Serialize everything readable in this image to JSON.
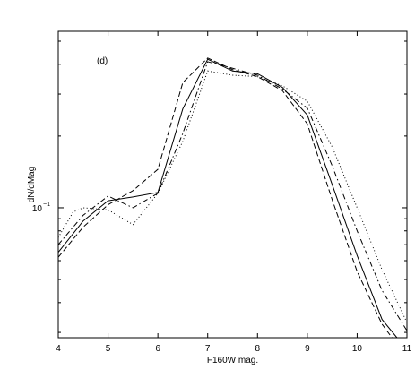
{
  "chart_data": {
    "type": "line",
    "panel_label": "(d)",
    "xlabel": "F160W mag.",
    "ylabel": "dN/dMag",
    "xlim": [
      4,
      11
    ],
    "ylim": [
      0.0285,
      0.55
    ],
    "yscale": "log",
    "x_ticks": [
      4,
      5,
      6,
      7,
      8,
      9,
      10,
      11
    ],
    "x_tick_labels": [
      "4",
      "5",
      "6",
      "7",
      "8",
      "9",
      "10",
      "11"
    ],
    "y_ticks": [
      0.1
    ],
    "y_tick_labels": [
      {
        "base": "10",
        "exp": "−1"
      }
    ],
    "grid": false,
    "series": [
      {
        "style": "solid",
        "x": [
          4,
          4.5,
          5,
          5.5,
          6,
          6.5,
          7,
          7.5,
          8,
          8.5,
          9,
          9.5,
          10,
          10.5,
          10.8
        ],
        "y": [
          0.065,
          0.088,
          0.107,
          0.111,
          0.116,
          0.26,
          0.42,
          0.375,
          0.365,
          0.32,
          0.245,
          0.125,
          0.063,
          0.034,
          0.0285
        ]
      },
      {
        "style": "dashed",
        "x": [
          4,
          4.5,
          5,
          5.5,
          6,
          6.5,
          7,
          7.5,
          8,
          8.5,
          9,
          9.5,
          10,
          10.5,
          10.7
        ],
        "y": [
          0.062,
          0.083,
          0.103,
          0.118,
          0.145,
          0.335,
          0.425,
          0.38,
          0.355,
          0.31,
          0.225,
          0.108,
          0.054,
          0.0325,
          0.0285
        ]
      },
      {
        "style": "dashdot",
        "x": [
          4,
          4.5,
          5,
          5.5,
          6,
          6.5,
          7,
          7.5,
          8,
          8.5,
          9,
          9.5,
          10,
          10.5,
          11
        ],
        "y": [
          0.07,
          0.093,
          0.112,
          0.1,
          0.115,
          0.205,
          0.41,
          0.385,
          0.36,
          0.315,
          0.262,
          0.15,
          0.08,
          0.045,
          0.0305
        ]
      },
      {
        "style": "dotted",
        "x": [
          4,
          4.3,
          4.5,
          5,
          5.5,
          6,
          6.5,
          7,
          7.5,
          8,
          8.5,
          9,
          9.5,
          10,
          10.5,
          11
        ],
        "y": [
          0.075,
          0.096,
          0.1,
          0.098,
          0.085,
          0.115,
          0.19,
          0.375,
          0.36,
          0.355,
          0.325,
          0.28,
          0.18,
          0.1,
          0.055,
          0.033
        ]
      }
    ]
  }
}
